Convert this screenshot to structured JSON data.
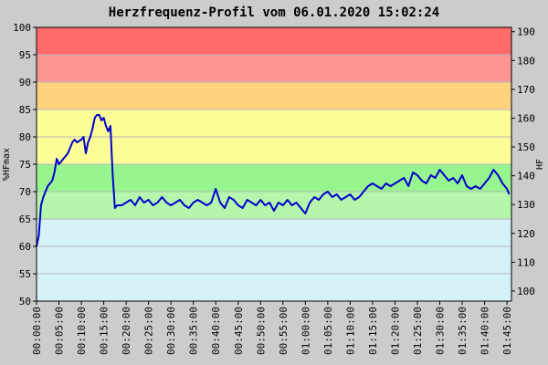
{
  "chart_data": {
    "type": "line",
    "title": "Herzfrequenz-Profil vom 06.01.2020 15:02:24",
    "ylabel_left": "%HFmax",
    "ylabel_right": "HF",
    "xlim_minutes": [
      0,
      106
    ],
    "ylim_left": [
      50,
      100
    ],
    "ylim_right": [
      96.5,
      191.5
    ],
    "yticks_left": [
      50,
      55,
      60,
      65,
      70,
      75,
      80,
      85,
      90,
      95,
      100
    ],
    "yticks_right": [
      100,
      110,
      120,
      130,
      140,
      150,
      160,
      170,
      180,
      190
    ],
    "xticks": [
      {
        "minute": 0,
        "label": "00:00:00"
      },
      {
        "minute": 5,
        "label": "00:05:00"
      },
      {
        "minute": 10,
        "label": "00:10:00"
      },
      {
        "minute": 15,
        "label": "00:15:00"
      },
      {
        "minute": 20,
        "label": "00:20:00"
      },
      {
        "minute": 25,
        "label": "00:25:00"
      },
      {
        "minute": 30,
        "label": "00:30:00"
      },
      {
        "minute": 35,
        "label": "00:35:00"
      },
      {
        "minute": 40,
        "label": "00:40:00"
      },
      {
        "minute": 45,
        "label": "00:45:00"
      },
      {
        "minute": 50,
        "label": "00:50:00"
      },
      {
        "minute": 55,
        "label": "00:55:00"
      },
      {
        "minute": 60,
        "label": "01:00:00"
      },
      {
        "minute": 65,
        "label": "01:05:00"
      },
      {
        "minute": 70,
        "label": "01:10:00"
      },
      {
        "minute": 75,
        "label": "01:15:00"
      },
      {
        "minute": 80,
        "label": "01:20:00"
      },
      {
        "minute": 85,
        "label": "01:25:00"
      },
      {
        "minute": 90,
        "label": "01:30:00"
      },
      {
        "minute": 95,
        "label": "01:35:00"
      },
      {
        "minute": 100,
        "label": "01:40:00"
      },
      {
        "minute": 105,
        "label": "01:45:00"
      }
    ],
    "zones": [
      {
        "from": 50,
        "to": 65,
        "color": "#d4f2f8"
      },
      {
        "from": 65,
        "to": 70,
        "color": "#b4f7ac"
      },
      {
        "from": 70,
        "to": 75,
        "color": "#96f58e"
      },
      {
        "from": 75,
        "to": 80,
        "color": "#fdfd98"
      },
      {
        "from": 80,
        "to": 85,
        "color": "#fdfd98"
      },
      {
        "from": 85,
        "to": 90,
        "color": "#ffd27e"
      },
      {
        "from": 90,
        "to": 95,
        "color": "#ff9494"
      },
      {
        "from": 95,
        "to": 100,
        "color": "#ff6a6a"
      }
    ],
    "line_color": "#0000cc",
    "grid": true,
    "series": [
      {
        "x": [
          0,
          0.5,
          1,
          1.5,
          2,
          2.5,
          3,
          3.5,
          4,
          4.5,
          5,
          5.5,
          6,
          6.5,
          7,
          7.5,
          8,
          8.5,
          9,
          10,
          10.5,
          11,
          11.5,
          12,
          12.5,
          13,
          13.5,
          14,
          14.5,
          15,
          15.5,
          16,
          16.5,
          17,
          17.5,
          18,
          19,
          20,
          21,
          22,
          23,
          24,
          25,
          26,
          27,
          28,
          29,
          30,
          31,
          32,
          33,
          34,
          35,
          36,
          37,
          38,
          39,
          40,
          41,
          42,
          43,
          44,
          45,
          46,
          47,
          48,
          49,
          50,
          51,
          52,
          53,
          54,
          55,
          56,
          57,
          58,
          59,
          60,
          61,
          62,
          63,
          64,
          65,
          66,
          67,
          68,
          69,
          70,
          71,
          72,
          73,
          74,
          75,
          76,
          77,
          78,
          79,
          80,
          81,
          82,
          83,
          84,
          85,
          86,
          87,
          88,
          89,
          90,
          91,
          92,
          93,
          94,
          95,
          96,
          97,
          98,
          99,
          100,
          101,
          102,
          103,
          104,
          105,
          105.5
        ],
        "values": [
          60,
          62,
          67.5,
          69,
          70,
          71,
          71.5,
          72,
          73.5,
          76,
          75,
          75.5,
          76,
          76.5,
          77,
          78,
          79,
          79.5,
          79,
          79.5,
          80,
          77,
          79,
          80,
          81.5,
          83.5,
          84,
          84,
          83,
          83.5,
          82,
          81,
          82,
          73,
          67,
          67.5,
          67.5,
          68,
          68.5,
          67.5,
          69,
          68,
          68.5,
          67.5,
          68,
          69,
          68,
          67.5,
          68,
          68.5,
          67.5,
          67,
          68,
          68.5,
          68,
          67.5,
          68,
          70.5,
          68,
          67,
          69,
          68.5,
          67.5,
          67,
          68.5,
          68,
          67.5,
          68.5,
          67.5,
          68,
          66.5,
          68,
          67.5,
          68.5,
          67.5,
          68,
          67,
          66,
          68,
          69,
          68.5,
          69.5,
          70,
          69,
          69.5,
          68.5,
          69,
          69.5,
          68.5,
          69,
          70,
          71,
          71.5,
          71,
          70.5,
          71.5,
          71,
          71.5,
          72,
          72.5,
          71,
          73.5,
          73,
          72,
          71.5,
          73,
          72.5,
          74,
          73,
          72,
          72.5,
          71.5,
          73,
          71,
          70.5,
          71,
          70.5,
          71.5,
          72.5,
          74,
          73,
          71.5,
          70.5,
          69.5
        ]
      }
    ]
  }
}
